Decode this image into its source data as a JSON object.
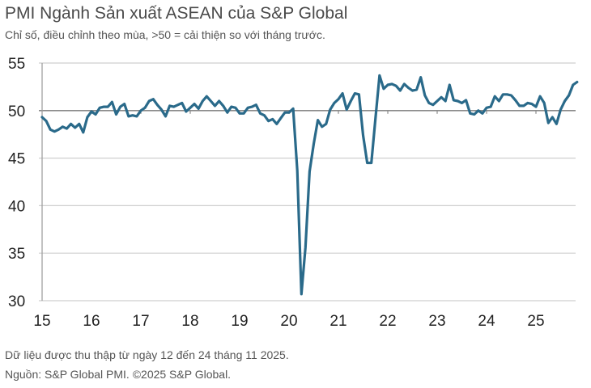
{
  "chart_data": {
    "type": "line",
    "title": "PMI Ngành Sản xuất ASEAN của S&P Global",
    "subtitle": "Chỉ số, điều chỉnh theo mùa, >50 = cải thiện so với tháng trước.",
    "xlabel": "",
    "ylabel": "",
    "ylim": [
      30,
      55
    ],
    "yticks": [
      "30",
      "35",
      "40",
      "45",
      "50",
      "55"
    ],
    "xticks": [
      "15",
      "16",
      "17",
      "18",
      "19",
      "20",
      "21",
      "22",
      "23",
      "24",
      "25"
    ],
    "x_start": "2015-01",
    "x_frequency": "monthly",
    "grid": true,
    "reference_line": 50,
    "series": [
      {
        "name": "ASEAN Manufacturing PMI",
        "color": "#2a6a8a",
        "values": [
          49.3,
          48.9,
          48.0,
          47.8,
          48.0,
          48.3,
          48.1,
          48.6,
          48.2,
          48.6,
          47.7,
          49.3,
          49.9,
          49.6,
          50.3,
          50.4,
          50.4,
          50.9,
          49.6,
          50.4,
          50.7,
          49.4,
          49.5,
          49.4,
          50.0,
          50.3,
          51.0,
          51.2,
          50.6,
          50.1,
          49.4,
          50.5,
          50.4,
          50.6,
          50.8,
          49.9,
          50.3,
          50.7,
          50.2,
          51.0,
          51.5,
          51.0,
          50.5,
          51.0,
          50.5,
          49.8,
          50.4,
          50.3,
          49.7,
          49.7,
          50.3,
          50.4,
          50.6,
          49.7,
          49.5,
          48.9,
          49.1,
          48.6,
          49.2,
          49.8,
          49.8,
          50.2,
          43.7,
          30.7,
          35.6,
          43.6,
          46.5,
          49.0,
          48.3,
          48.6,
          50.1,
          50.8,
          51.2,
          51.8,
          50.1,
          51.0,
          51.8,
          51.7,
          47.4,
          44.5,
          44.5,
          49.2,
          53.7,
          52.3,
          52.7,
          52.8,
          52.6,
          52.1,
          52.8,
          52.4,
          52.1,
          52.2,
          53.5,
          51.6,
          50.8,
          50.6,
          51.0,
          51.4,
          51.0,
          52.7,
          51.1,
          51.0,
          50.8,
          51.1,
          49.7,
          49.6,
          50.0,
          49.7,
          50.3,
          50.4,
          51.5,
          51.0,
          51.7,
          51.7,
          51.6,
          51.1,
          50.5,
          50.5,
          50.8,
          50.7,
          50.4,
          51.5,
          50.8,
          48.7,
          49.3,
          48.6,
          50.1,
          51.0,
          51.6,
          52.7,
          53.0
        ]
      }
    ]
  },
  "footer": {
    "note": "Dữ liệu được thu thập từ ngày 12 đến 24 tháng 11 2025.",
    "source": "Nguồn: S&P Global PMI. ©2025 S&P Global."
  }
}
